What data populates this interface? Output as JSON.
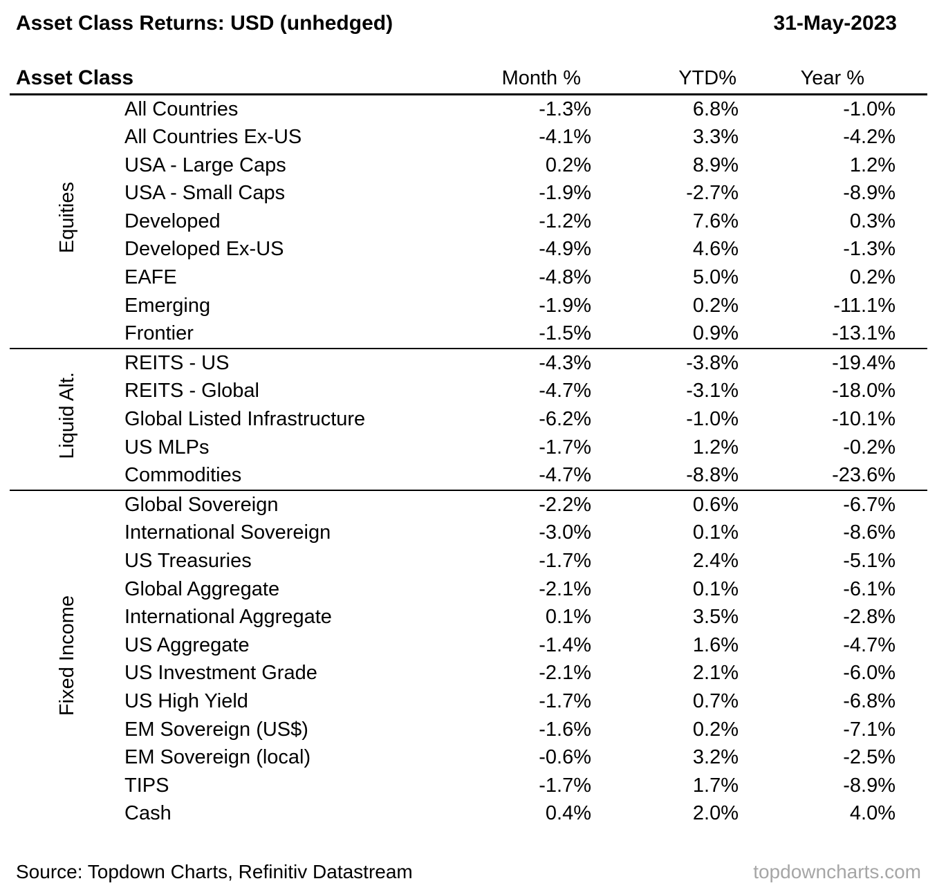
{
  "header": {
    "title": "Asset Class Returns: USD (unhedged)",
    "date": "31-May-2023"
  },
  "table": {
    "columns": [
      "Asset Class",
      "Month %",
      "YTD%",
      "Year %"
    ],
    "groups": [
      {
        "label": "Equities",
        "rows": [
          {
            "name": "All Countries",
            "month": "-1.3%",
            "ytd": "6.8%",
            "year": "-1.0%"
          },
          {
            "name": "All Countries Ex-US",
            "month": "-4.1%",
            "ytd": "3.3%",
            "year": "-4.2%"
          },
          {
            "name": "USA - Large Caps",
            "month": "0.2%",
            "ytd": "8.9%",
            "year": "1.2%"
          },
          {
            "name": "USA - Small Caps",
            "month": "-1.9%",
            "ytd": "-2.7%",
            "year": "-8.9%"
          },
          {
            "name": "Developed",
            "month": "-1.2%",
            "ytd": "7.6%",
            "year": "0.3%"
          },
          {
            "name": "Developed Ex-US",
            "month": "-4.9%",
            "ytd": "4.6%",
            "year": "-1.3%"
          },
          {
            "name": "EAFE",
            "month": "-4.8%",
            "ytd": "5.0%",
            "year": "0.2%"
          },
          {
            "name": "Emerging",
            "month": "-1.9%",
            "ytd": "0.2%",
            "year": "-11.1%"
          },
          {
            "name": "Frontier",
            "month": "-1.5%",
            "ytd": "0.9%",
            "year": "-13.1%"
          }
        ]
      },
      {
        "label": "Liquid Alt.",
        "rows": [
          {
            "name": "REITS - US",
            "month": "-4.3%",
            "ytd": "-3.8%",
            "year": "-19.4%"
          },
          {
            "name": "REITS - Global",
            "month": "-4.7%",
            "ytd": "-3.1%",
            "year": "-18.0%"
          },
          {
            "name": "Global Listed Infrastructure",
            "month": "-6.2%",
            "ytd": "-1.0%",
            "year": "-10.1%"
          },
          {
            "name": "US MLPs",
            "month": "-1.7%",
            "ytd": "1.2%",
            "year": "-0.2%"
          },
          {
            "name": "Commodities",
            "month": "-4.7%",
            "ytd": "-8.8%",
            "year": "-23.6%"
          }
        ]
      },
      {
        "label": "Fixed Income",
        "rows": [
          {
            "name": "Global Sovereign",
            "month": "-2.2%",
            "ytd": "0.6%",
            "year": "-6.7%"
          },
          {
            "name": "International Sovereign",
            "month": "-3.0%",
            "ytd": "0.1%",
            "year": "-8.6%"
          },
          {
            "name": "US Treasuries",
            "month": "-1.7%",
            "ytd": "2.4%",
            "year": "-5.1%"
          },
          {
            "name": "Global Aggregate",
            "month": "-2.1%",
            "ytd": "0.1%",
            "year": "-6.1%"
          },
          {
            "name": "International Aggregate",
            "month": "0.1%",
            "ytd": "3.5%",
            "year": "-2.8%"
          },
          {
            "name": "US Aggregate",
            "month": "-1.4%",
            "ytd": "1.6%",
            "year": "-4.7%"
          },
          {
            "name": "US Investment Grade",
            "month": "-2.1%",
            "ytd": "2.1%",
            "year": "-6.0%"
          },
          {
            "name": "US High Yield",
            "month": "-1.7%",
            "ytd": "0.7%",
            "year": "-6.8%"
          },
          {
            "name": "EM Sovereign (US$)",
            "month": "-1.6%",
            "ytd": "0.2%",
            "year": "-7.1%"
          },
          {
            "name": "EM Sovereign (local)",
            "month": "-0.6%",
            "ytd": "3.2%",
            "year": "-2.5%"
          },
          {
            "name": "TIPS",
            "month": "-1.7%",
            "ytd": "1.7%",
            "year": "-8.9%"
          },
          {
            "name": "Cash",
            "month": "0.4%",
            "ytd": "2.0%",
            "year": "4.0%"
          }
        ]
      }
    ]
  },
  "footer": {
    "source": "Source: Topdown Charts, Refinitiv Datastream",
    "site": "topdowncharts.com"
  },
  "colors": {
    "text": "#000000",
    "footer_site_gray": "#a6a6a6",
    "rule": "#000000"
  },
  "chart_data": {
    "type": "table",
    "title": "Asset Class Returns: USD (unhedged)",
    "as_of_date": "31-May-2023",
    "columns": [
      "Asset Class",
      "Month %",
      "YTD%",
      "Year %"
    ],
    "groups": [
      {
        "label": "Equities",
        "rows": [
          {
            "name": "All Countries",
            "month_pct": -1.3,
            "ytd_pct": 6.8,
            "year_pct": -1.0
          },
          {
            "name": "All Countries Ex-US",
            "month_pct": -4.1,
            "ytd_pct": 3.3,
            "year_pct": -4.2
          },
          {
            "name": "USA - Large Caps",
            "month_pct": 0.2,
            "ytd_pct": 8.9,
            "year_pct": 1.2
          },
          {
            "name": "USA - Small Caps",
            "month_pct": -1.9,
            "ytd_pct": -2.7,
            "year_pct": -8.9
          },
          {
            "name": "Developed",
            "month_pct": -1.2,
            "ytd_pct": 7.6,
            "year_pct": 0.3
          },
          {
            "name": "Developed Ex-US",
            "month_pct": -4.9,
            "ytd_pct": 4.6,
            "year_pct": -1.3
          },
          {
            "name": "EAFE",
            "month_pct": -4.8,
            "ytd_pct": 5.0,
            "year_pct": 0.2
          },
          {
            "name": "Emerging",
            "month_pct": -1.9,
            "ytd_pct": 0.2,
            "year_pct": -11.1
          },
          {
            "name": "Frontier",
            "month_pct": -1.5,
            "ytd_pct": 0.9,
            "year_pct": -13.1
          }
        ]
      },
      {
        "label": "Liquid Alt.",
        "rows": [
          {
            "name": "REITS - US",
            "month_pct": -4.3,
            "ytd_pct": -3.8,
            "year_pct": -19.4
          },
          {
            "name": "REITS - Global",
            "month_pct": -4.7,
            "ytd_pct": -3.1,
            "year_pct": -18.0
          },
          {
            "name": "Global Listed Infrastructure",
            "month_pct": -6.2,
            "ytd_pct": -1.0,
            "year_pct": -10.1
          },
          {
            "name": "US MLPs",
            "month_pct": -1.7,
            "ytd_pct": 1.2,
            "year_pct": -0.2
          },
          {
            "name": "Commodities",
            "month_pct": -4.7,
            "ytd_pct": -8.8,
            "year_pct": -23.6
          }
        ]
      },
      {
        "label": "Fixed Income",
        "rows": [
          {
            "name": "Global Sovereign",
            "month_pct": -2.2,
            "ytd_pct": 0.6,
            "year_pct": -6.7
          },
          {
            "name": "International Sovereign",
            "month_pct": -3.0,
            "ytd_pct": 0.1,
            "year_pct": -8.6
          },
          {
            "name": "US Treasuries",
            "month_pct": -1.7,
            "ytd_pct": 2.4,
            "year_pct": -5.1
          },
          {
            "name": "Global Aggregate",
            "month_pct": -2.1,
            "ytd_pct": 0.1,
            "year_pct": -6.1
          },
          {
            "name": "International Aggregate",
            "month_pct": 0.1,
            "ytd_pct": 3.5,
            "year_pct": -2.8
          },
          {
            "name": "US Aggregate",
            "month_pct": -1.4,
            "ytd_pct": 1.6,
            "year_pct": -4.7
          },
          {
            "name": "US Investment Grade",
            "month_pct": -2.1,
            "ytd_pct": 2.1,
            "year_pct": -6.0
          },
          {
            "name": "US High Yield",
            "month_pct": -1.7,
            "ytd_pct": 0.7,
            "year_pct": -6.8
          },
          {
            "name": "EM Sovereign (US$)",
            "month_pct": -1.6,
            "ytd_pct": 0.2,
            "year_pct": -7.1
          },
          {
            "name": "EM Sovereign (local)",
            "month_pct": -0.6,
            "ytd_pct": 3.2,
            "year_pct": -2.5
          },
          {
            "name": "TIPS",
            "month_pct": -1.7,
            "ytd_pct": 1.7,
            "year_pct": -8.9
          },
          {
            "name": "Cash",
            "month_pct": 0.4,
            "ytd_pct": 2.0,
            "year_pct": 4.0
          }
        ]
      }
    ]
  }
}
